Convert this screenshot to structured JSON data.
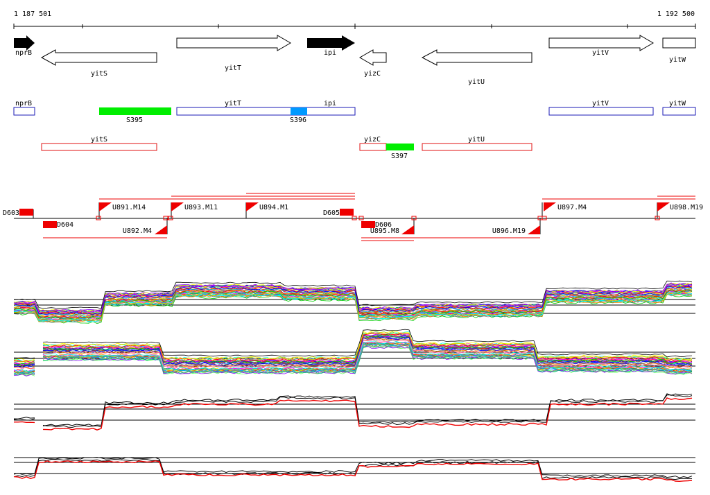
{
  "ruler": {
    "start": "1 187 501",
    "end": "1 192 500"
  },
  "genes": [
    {
      "name": "nprB",
      "strand": "+",
      "highlight": true,
      "label_pos": "below"
    },
    {
      "name": "yitS",
      "strand": "-",
      "highlight": false,
      "label_pos": "below"
    },
    {
      "name": "yitT",
      "strand": "+",
      "highlight": false,
      "label_pos": "below"
    },
    {
      "name": "ipi",
      "strand": "+",
      "highlight": true,
      "label_pos": "inside"
    },
    {
      "name": "yizC",
      "strand": "-",
      "highlight": false,
      "label_pos": "below"
    },
    {
      "name": "yitU",
      "strand": "-",
      "highlight": false,
      "label_pos": "below"
    },
    {
      "name": "yitV",
      "strand": "+",
      "highlight": false,
      "label_pos": "above"
    },
    {
      "name": "yitW",
      "strand": "+",
      "highlight": false,
      "label_pos": "below"
    }
  ],
  "forward_track": {
    "labels": [
      "nprB",
      "yitT",
      "ipi",
      "yitV",
      "yitW"
    ],
    "segments": [
      {
        "label": "S395",
        "color": "#00ee00"
      },
      {
        "label": "S396",
        "color": "#0099ff"
      }
    ]
  },
  "reverse_track": {
    "labels": [
      "yitS",
      "yizC",
      "yitU"
    ],
    "segments": [
      {
        "label": "S397",
        "color": "#00ee00"
      }
    ]
  },
  "transcription_units": [
    "U891.M14",
    "U892.M4",
    "U893.M11",
    "U894.M1",
    "U895.M8",
    "U896.M19",
    "U897.M4",
    "U898.M19"
  ],
  "downregulated_sites": [
    "D603",
    "D604",
    "D605",
    "D606"
  ],
  "expression_panels": [
    {
      "name": "forward-strand-profiles",
      "style": "multicolor"
    },
    {
      "name": "reverse-strand-profiles",
      "style": "multicolor"
    },
    {
      "name": "forward-strand-summary",
      "style": "black-red"
    },
    {
      "name": "reverse-strand-summary",
      "style": "black-red"
    }
  ],
  "colors": {
    "gene_outline": "#000000",
    "gene_highlight": "#000000",
    "forward_outline": "#1a1ab4",
    "reverse_outline": "#e01010",
    "tu_marker": "#ee0000",
    "summary_red": "#ee0000"
  }
}
